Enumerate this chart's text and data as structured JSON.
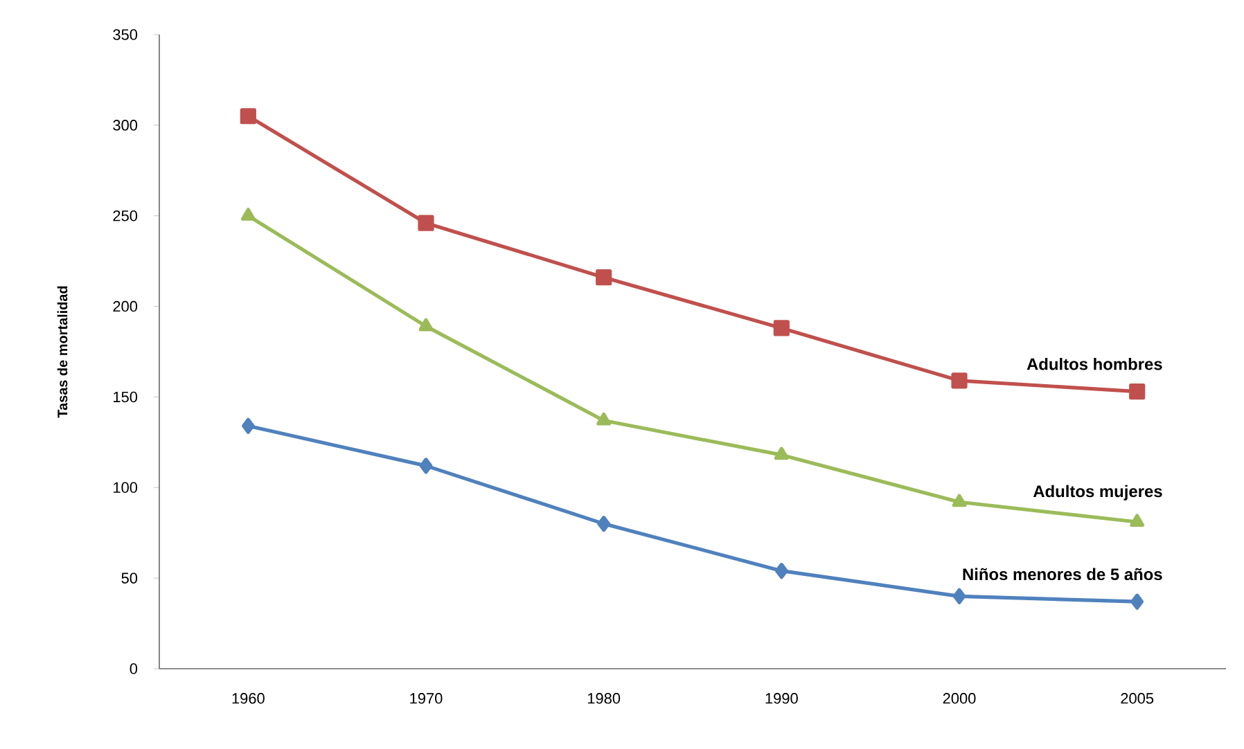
{
  "chart_data": {
    "type": "line",
    "ylabel": "Tasas de mortalidad",
    "categories": [
      "1960",
      "1970",
      "1980",
      "1990",
      "2000",
      "2005"
    ],
    "series": [
      {
        "name": "Adultos hombres",
        "color": "#c0504d",
        "marker": "square",
        "values": [
          305,
          246,
          216,
          188,
          159,
          153
        ]
      },
      {
        "name": "Adultos mujeres",
        "color": "#9bbb59",
        "marker": "triangle",
        "values": [
          250,
          189,
          137,
          118,
          92,
          81
        ]
      },
      {
        "name": "Niños menores de 5 años",
        "color": "#4f81bd",
        "marker": "diamond",
        "values": [
          134,
          112,
          80,
          54,
          40,
          37
        ]
      }
    ],
    "ylim": [
      0,
      350
    ],
    "yticks": [
      0,
      50,
      100,
      150,
      200,
      250,
      300,
      350
    ],
    "grid": false,
    "legend": false,
    "line_style": "solid"
  }
}
